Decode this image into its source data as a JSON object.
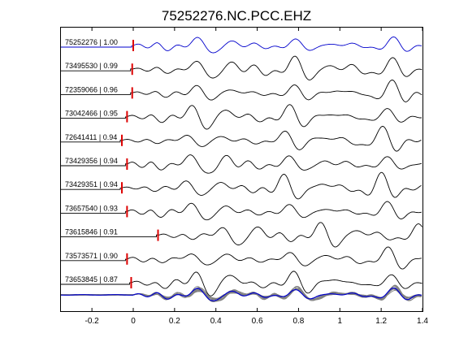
{
  "chart_data": {
    "type": "line",
    "title": "75252276.NC.PCC.EHZ",
    "xlabel": "",
    "ylabel": "",
    "xlim": [
      -0.35,
      1.4
    ],
    "x_ticks": [
      -0.2,
      0,
      0.2,
      0.4,
      0.6,
      0.8,
      1,
      1.2,
      1.4
    ],
    "x_tick_labels": [
      "-0.2",
      "0",
      "0.2",
      "0.4",
      "0.6",
      "0.8",
      "1",
      "1.2",
      "1.4"
    ],
    "grid": false,
    "colors": {
      "reference_trace": "#0000cc",
      "trace": "#000000",
      "pick_marker": "#dd0000",
      "stack_trace": "#808080",
      "axes": "#000000"
    },
    "series": [
      {
        "name": "75252276 | 1.00",
        "pick_time": 0.0,
        "reference": true
      },
      {
        "name": "73495530 | 0.99",
        "pick_time": -0.005
      },
      {
        "name": "72359066 | 0.96",
        "pick_time": -0.005
      },
      {
        "name": "73042466 | 0.95",
        "pick_time": -0.03
      },
      {
        "name": "72641411 | 0.94",
        "pick_time": -0.055
      },
      {
        "name": "73429356 | 0.94",
        "pick_time": -0.03
      },
      {
        "name": "73429351 | 0.94",
        "pick_time": -0.055
      },
      {
        "name": "73657540 | 0.93",
        "pick_time": -0.03
      },
      {
        "name": "73615846 | 0.91",
        "pick_time": 0.12
      },
      {
        "name": "73573571 | 0.90",
        "pick_time": -0.03
      },
      {
        "name": "73653845 | 0.87",
        "pick_time": -0.01
      }
    ],
    "stack": {
      "description_visible": false
    }
  }
}
